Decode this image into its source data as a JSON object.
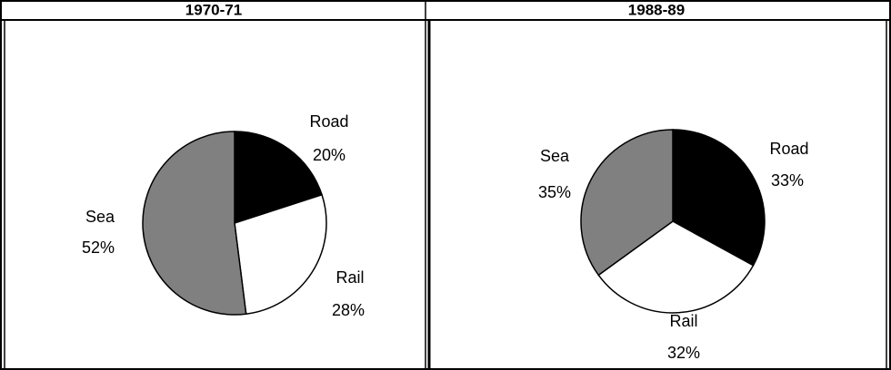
{
  "chart_data": [
    {
      "type": "pie",
      "title": "1970-71",
      "categories": [
        "Road",
        "Rail",
        "Sea"
      ],
      "values": [
        20,
        28,
        52
      ],
      "value_labels": [
        "20%",
        "28%",
        "52%"
      ],
      "colors": [
        "#000000",
        "#ffffff",
        "#808080"
      ]
    },
    {
      "type": "pie",
      "title": "1988-89",
      "categories": [
        "Road",
        "Rail",
        "Sea"
      ],
      "values": [
        33,
        32,
        35
      ],
      "value_labels": [
        "33%",
        "32%",
        "35%"
      ],
      "colors": [
        "#000000",
        "#ffffff",
        "#808080"
      ]
    }
  ]
}
